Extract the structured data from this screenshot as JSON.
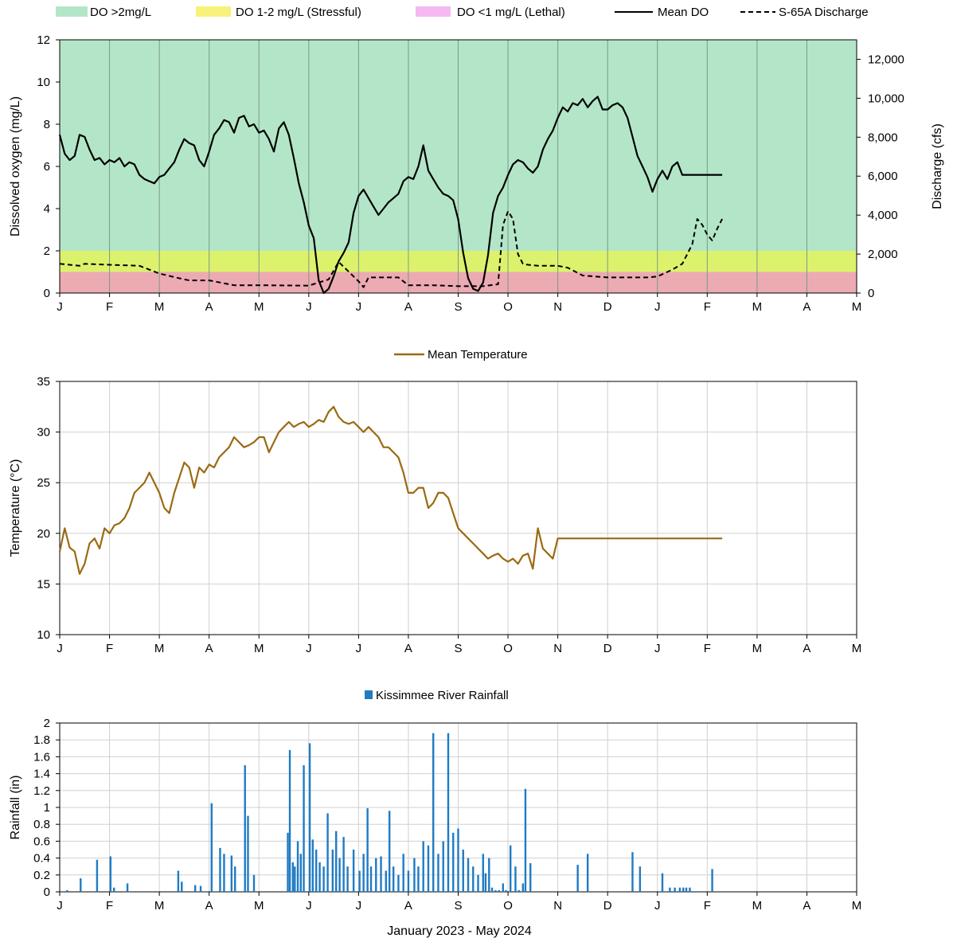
{
  "figure": {
    "xlabel": "January  2023 - May 2024"
  },
  "months": [
    "J",
    "F",
    "M",
    "A",
    "M",
    "J",
    "J",
    "A",
    "S",
    "O",
    "N",
    "D",
    "J",
    "F",
    "M",
    "A",
    "M"
  ],
  "chart_data": [
    {
      "type": "line",
      "ylabel": "Dissolved oxygen (mg/L)",
      "y2label": "Discharge (cfs)",
      "ylim": [
        0,
        12
      ],
      "yticks": [
        0,
        2,
        4,
        6,
        8,
        10,
        12
      ],
      "y2lim": [
        0,
        13000
      ],
      "y2ticks": [
        "0",
        "2,000",
        "4,000",
        "6,000",
        "8,000",
        "10,000",
        "12,000"
      ],
      "xlim": [
        0,
        16
      ],
      "grid": "vertical",
      "legend_position": "top",
      "bands": [
        {
          "name": "DO >2mg/L",
          "from": 2,
          "to": 12,
          "color": "#b3e6c8"
        },
        {
          "name": "DO 1-2 mg/L (Stressful)",
          "from": 1,
          "to": 2,
          "color": "#ddf26c"
        },
        {
          "name": "DO <1 mg/L (Lethal)",
          "from": 0,
          "to": 1,
          "color": "#ecaab2"
        }
      ],
      "legend_swatch_colors": [
        "#b3e6c8",
        "#f7f27a",
        "#f5b8f2"
      ],
      "series": [
        {
          "name": "Mean DO",
          "axis": "left",
          "style": "solid",
          "color": "#000000",
          "x": [
            0.0,
            0.1,
            0.2,
            0.3,
            0.4,
            0.5,
            0.6,
            0.7,
            0.8,
            0.9,
            1.0,
            1.1,
            1.2,
            1.3,
            1.4,
            1.5,
            1.6,
            1.7,
            1.8,
            1.9,
            2.0,
            2.1,
            2.2,
            2.3,
            2.4,
            2.5,
            2.6,
            2.7,
            2.8,
            2.9,
            3.0,
            3.1,
            3.2,
            3.3,
            3.4,
            3.5,
            3.6,
            3.7,
            3.8,
            3.9,
            4.0,
            4.1,
            4.2,
            4.3,
            4.4,
            4.5,
            4.6,
            4.7,
            4.8,
            4.9,
            5.0,
            5.1,
            5.2,
            5.3,
            5.4,
            5.5,
            5.6,
            5.7,
            5.8,
            5.9,
            6.0,
            6.1,
            6.2,
            6.3,
            6.4,
            6.5,
            6.6,
            6.7,
            6.8,
            6.9,
            7.0,
            7.1,
            7.2,
            7.3,
            7.4,
            7.5,
            7.6,
            7.7,
            7.8,
            7.9,
            8.0,
            8.1,
            8.2,
            8.3,
            8.4,
            8.5,
            8.6,
            8.7,
            8.8,
            8.9,
            9.0,
            9.1,
            9.2,
            9.3,
            9.4,
            9.5,
            9.6,
            9.7,
            9.8,
            9.9,
            10.0,
            10.1,
            10.2,
            10.3,
            10.4,
            10.5,
            10.6,
            10.7,
            10.8,
            10.9,
            11.0,
            11.1,
            11.2,
            11.3,
            11.4,
            11.5,
            11.6,
            11.7,
            11.8,
            11.9,
            12.0,
            12.1,
            12.2,
            12.3,
            12.4,
            12.5,
            12.6,
            12.7,
            12.8,
            12.9,
            13.0,
            13.1,
            13.2,
            13.3
          ],
          "y": [
            7.5,
            6.6,
            6.3,
            6.5,
            7.5,
            7.4,
            6.8,
            6.3,
            6.4,
            6.1,
            6.3,
            6.2,
            6.4,
            6.0,
            6.2,
            6.1,
            5.6,
            5.4,
            5.3,
            5.2,
            5.5,
            5.6,
            5.9,
            6.2,
            6.8,
            7.3,
            7.1,
            7.0,
            6.3,
            6.0,
            6.7,
            7.5,
            7.8,
            8.2,
            8.1,
            7.6,
            8.3,
            8.4,
            7.9,
            8.0,
            7.6,
            7.7,
            7.3,
            6.7,
            7.8,
            8.1,
            7.5,
            6.4,
            5.2,
            4.3,
            3.2,
            2.6,
            0.6,
            0.0,
            0.2,
            0.8,
            1.5,
            1.9,
            2.4,
            3.8,
            4.6,
            4.9,
            4.5,
            4.1,
            3.7,
            4.0,
            4.3,
            4.5,
            4.7,
            5.3,
            5.5,
            5.4,
            6.0,
            7.0,
            5.8,
            5.4,
            5.0,
            4.7,
            4.6,
            4.4,
            3.5,
            1.9,
            0.7,
            0.2,
            0.1,
            0.5,
            1.8,
            3.8,
            4.6,
            5.0,
            5.6,
            6.1,
            6.3,
            6.2,
            5.9,
            5.7,
            6.0,
            6.8,
            7.3,
            7.7,
            8.3,
            8.8,
            8.6,
            9.0,
            8.9,
            9.2,
            8.8,
            9.1,
            9.3,
            8.7,
            8.7,
            8.9,
            9.0,
            8.8,
            8.3,
            7.4,
            6.5,
            6.0,
            5.5,
            4.8,
            5.4,
            5.8,
            5.4,
            6.0,
            6.2,
            5.6,
            5.6,
            5.6,
            5.6,
            5.6,
            5.6,
            5.6,
            5.6,
            5.6
          ]
        },
        {
          "name": "S-65A Discharge",
          "axis": "right",
          "style": "dashed",
          "color": "#000000",
          "x": [
            0,
            0.4,
            0.5,
            1.0,
            1.6,
            1.7,
            2.0,
            2.5,
            2.6,
            3.0,
            3.5,
            4.0,
            5.0,
            5.4,
            5.6,
            5.8,
            6.0,
            6.1,
            6.2,
            6.4,
            6.5,
            6.8,
            7.0,
            7.5,
            8.0,
            8.5,
            8.8,
            8.9,
            9.0,
            9.1,
            9.2,
            9.3,
            9.4,
            9.6,
            10.0,
            10.2,
            10.5,
            11.0,
            11.5,
            11.8,
            12.0,
            12.3,
            12.5,
            12.7,
            12.8,
            12.9,
            13.0,
            13.1,
            13.2,
            13.3
          ],
          "y": [
            1500,
            1400,
            1500,
            1450,
            1400,
            1300,
            1000,
            700,
            650,
            650,
            400,
            400,
            380,
            700,
            1600,
            1100,
            600,
            300,
            800,
            800,
            800,
            800,
            400,
            400,
            350,
            350,
            450,
            3500,
            4200,
            3800,
            2000,
            1500,
            1450,
            1400,
            1400,
            1300,
            900,
            800,
            800,
            800,
            850,
            1200,
            1500,
            2500,
            3800,
            3500,
            3000,
            2700,
            3300,
            3800
          ]
        },
        {
          "name": "DO >2mg/L",
          "type": "band",
          "color": "#b3e6c8"
        },
        {
          "name": "DO 1-2 mg/L (Stressful)",
          "type": "band",
          "color": "#ddf26c"
        },
        {
          "name": "DO <1 mg/L (Lethal)",
          "type": "band",
          "color": "#ecaab2"
        }
      ]
    },
    {
      "type": "line",
      "ylabel": "Temperature (°C)",
      "ylim": [
        10,
        35
      ],
      "yticks": [
        10,
        15,
        20,
        25,
        30,
        35
      ],
      "xlim": [
        0,
        16
      ],
      "grid": "both",
      "legend_position": "top",
      "series": [
        {
          "name": "Mean Temperature",
          "color": "#9b6a12",
          "x": [
            0.0,
            0.1,
            0.2,
            0.3,
            0.4,
            0.5,
            0.6,
            0.7,
            0.8,
            0.9,
            1.0,
            1.1,
            1.2,
            1.3,
            1.4,
            1.5,
            1.6,
            1.7,
            1.8,
            1.9,
            2.0,
            2.1,
            2.2,
            2.3,
            2.4,
            2.5,
            2.6,
            2.7,
            2.8,
            2.9,
            3.0,
            3.1,
            3.2,
            3.3,
            3.4,
            3.5,
            3.6,
            3.7,
            3.8,
            3.9,
            4.0,
            4.1,
            4.2,
            4.3,
            4.4,
            4.5,
            4.6,
            4.7,
            4.8,
            4.9,
            5.0,
            5.1,
            5.2,
            5.3,
            5.4,
            5.5,
            5.6,
            5.7,
            5.8,
            5.9,
            6.0,
            6.1,
            6.2,
            6.3,
            6.4,
            6.5,
            6.6,
            6.7,
            6.8,
            6.9,
            7.0,
            7.1,
            7.2,
            7.3,
            7.4,
            7.5,
            7.6,
            7.7,
            7.8,
            7.9,
            8.0,
            8.1,
            8.2,
            8.3,
            8.4,
            8.5,
            8.6,
            8.7,
            8.8,
            8.9,
            9.0,
            9.1,
            9.2,
            9.3,
            9.4,
            9.5,
            9.6,
            9.7,
            9.8,
            9.9,
            10.0,
            10.1,
            10.2,
            10.3,
            10.4,
            10.5,
            10.6,
            10.7,
            10.8,
            10.9,
            11.0,
            11.1,
            11.2,
            11.3,
            11.4,
            11.5,
            11.6,
            11.7,
            11.8,
            11.9,
            12.0,
            12.1,
            12.2,
            12.3,
            12.4,
            12.5,
            12.6,
            12.7,
            12.8,
            12.9,
            13.0,
            13.1,
            13.2,
            13.3
          ],
          "y": [
            18.2,
            20.5,
            18.6,
            18.2,
            16.0,
            17.0,
            19.0,
            19.5,
            18.5,
            20.5,
            20.0,
            20.8,
            21.0,
            21.5,
            22.5,
            24.0,
            24.5,
            25.0,
            26.0,
            25.0,
            24.0,
            22.5,
            22.0,
            24.0,
            25.5,
            27.0,
            26.5,
            24.5,
            26.5,
            26.0,
            26.8,
            26.5,
            27.5,
            28.0,
            28.5,
            29.5,
            29.0,
            28.5,
            28.7,
            29.0,
            29.5,
            29.5,
            28.0,
            29.0,
            30.0,
            30.5,
            31.0,
            30.5,
            30.8,
            31.0,
            30.5,
            30.8,
            31.2,
            31.0,
            32.0,
            32.5,
            31.5,
            31.0,
            30.8,
            31.0,
            30.5,
            30.0,
            30.5,
            30.0,
            29.5,
            28.5,
            28.5,
            28.0,
            27.5,
            26.0,
            24.0,
            24.0,
            24.5,
            24.5,
            22.5,
            23.0,
            24.0,
            24.0,
            23.5,
            22.0,
            20.5,
            20.0,
            19.5,
            19.0,
            18.5,
            18.0,
            17.5,
            17.8,
            18.0,
            17.5,
            17.2,
            17.5,
            17.0,
            17.8,
            18.0,
            16.5,
            20.5,
            18.5,
            18.0,
            17.5,
            19.5,
            19.5,
            19.5,
            19.5,
            19.5,
            19.5,
            19.5,
            19.5,
            19.5,
            19.5,
            19.5,
            19.5,
            19.5,
            19.5,
            19.5,
            19.5,
            19.5,
            19.5,
            19.5,
            19.5,
            19.5,
            19.5,
            19.5,
            19.5,
            19.5,
            19.5,
            19.5,
            19.5,
            19.5,
            19.5,
            19.5,
            19.5,
            19.5,
            19.5
          ]
        }
      ]
    },
    {
      "type": "bar",
      "ylabel": "Rainfall (in)",
      "ylim": [
        0,
        2
      ],
      "yticks": [
        0,
        0.2,
        0.4,
        0.6,
        0.8,
        1,
        1.2,
        1.4,
        1.6,
        1.8,
        2
      ],
      "xlim": [
        0,
        16
      ],
      "grid": "both",
      "legend_position": "top",
      "series": [
        {
          "name": "Kissimmee River Rainfall",
          "color": "#1f7bc4",
          "x": [
            0.15,
            0.42,
            0.75,
            1.02,
            1.09,
            1.36,
            2.38,
            2.45,
            2.72,
            2.83,
            3.05,
            3.22,
            3.3,
            3.45,
            3.52,
            3.72,
            3.78,
            3.9,
            4.58,
            4.62,
            4.68,
            4.72,
            4.78,
            4.84,
            4.9,
            5.02,
            5.08,
            5.15,
            5.22,
            5.3,
            5.38,
            5.48,
            5.55,
            5.62,
            5.7,
            5.78,
            5.9,
            6.02,
            6.1,
            6.18,
            6.25,
            6.35,
            6.45,
            6.55,
            6.62,
            6.7,
            6.8,
            6.9,
            7.0,
            7.12,
            7.2,
            7.3,
            7.4,
            7.5,
            7.6,
            7.7,
            7.8,
            7.9,
            8.0,
            8.1,
            8.2,
            8.3,
            8.4,
            8.5,
            8.55,
            8.62,
            8.68,
            8.75,
            8.82,
            8.9,
            8.96,
            9.05,
            9.15,
            9.22,
            9.3,
            9.35,
            9.45,
            10.4,
            10.6,
            11.5,
            11.65,
            12.1,
            12.25,
            12.35,
            12.45,
            12.52,
            12.58,
            12.65,
            13.1
          ],
          "y": [
            0.02,
            0.16,
            0.38,
            0.42,
            0.05,
            0.1,
            0.25,
            0.12,
            0.08,
            0.07,
            1.05,
            0.52,
            0.45,
            0.43,
            0.3,
            1.5,
            0.9,
            0.2,
            0.7,
            1.68,
            0.35,
            0.3,
            0.6,
            0.45,
            1.5,
            1.76,
            0.62,
            0.5,
            0.35,
            0.3,
            0.93,
            0.5,
            0.72,
            0.4,
            0.65,
            0.3,
            0.5,
            0.25,
            0.45,
            0.99,
            0.3,
            0.4,
            0.42,
            0.25,
            0.96,
            0.3,
            0.2,
            0.45,
            0.25,
            0.4,
            0.3,
            0.6,
            0.55,
            1.88,
            0.45,
            0.6,
            1.88,
            0.7,
            0.75,
            0.5,
            0.4,
            0.3,
            0.2,
            0.45,
            0.22,
            0.4,
            0.05,
            0.02,
            0.02,
            0.1,
            0.02,
            0.55,
            0.3,
            0.02,
            0.1,
            1.22,
            0.34,
            0.32,
            0.45,
            0.47,
            0.3,
            0.22,
            0.05,
            0.05,
            0.05,
            0.05,
            0.05,
            0.05,
            0.27
          ]
        }
      ]
    }
  ]
}
